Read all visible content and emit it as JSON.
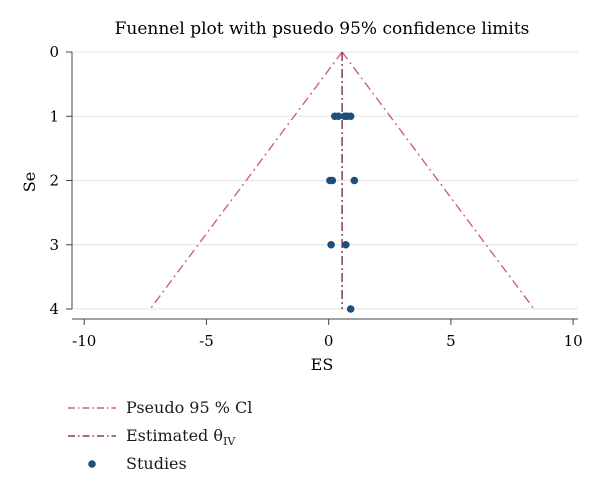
{
  "chart_data": {
    "type": "scatter",
    "title": "Fuennel plot with psuedo 95% confidence limits",
    "xlabel": "ES",
    "ylabel": "Se",
    "xlim": [
      -10.5,
      10.2
    ],
    "ylim": [
      0,
      4
    ],
    "y_reversed": true,
    "x_ticks": [
      "-10",
      "-5",
      "0",
      "5",
      "10"
    ],
    "x_tick_values": [
      -10,
      -5,
      0,
      5,
      10
    ],
    "y_ticks": [
      "0",
      "1",
      "2",
      "3",
      "4"
    ],
    "y_tick_values": [
      0,
      1,
      2,
      3,
      4
    ],
    "grid": "horizontal",
    "legend_position": "bottom-left",
    "estimated_theta": 0.55,
    "pseudo_ci": {
      "apex": [
        0.55,
        0
      ],
      "left_end": [
        -7.3,
        4
      ],
      "right_end": [
        8.4,
        4
      ]
    },
    "series": [
      {
        "name": "Studies",
        "points": [
          {
            "x": 0.25,
            "y": 1
          },
          {
            "x": 0.4,
            "y": 1
          },
          {
            "x": 0.65,
            "y": 1
          },
          {
            "x": 0.75,
            "y": 1
          },
          {
            "x": 0.9,
            "y": 1
          },
          {
            "x": 0.05,
            "y": 2
          },
          {
            "x": 0.15,
            "y": 2
          },
          {
            "x": 1.05,
            "y": 2
          },
          {
            "x": 0.1,
            "y": 3
          },
          {
            "x": 0.7,
            "y": 3
          },
          {
            "x": 0.9,
            "y": 4
          }
        ]
      }
    ],
    "colors": {
      "ci_line": "#d0607a",
      "theta_line": "#8c3a52",
      "points": "#1f4e79",
      "grid": "#e4e4e4",
      "axis": "#444444"
    }
  },
  "legend": {
    "ci_label": "Pseudo 95 % Cl",
    "theta_label": "Estimated θ",
    "theta_sub": "IV",
    "studies_label": "Studies"
  }
}
